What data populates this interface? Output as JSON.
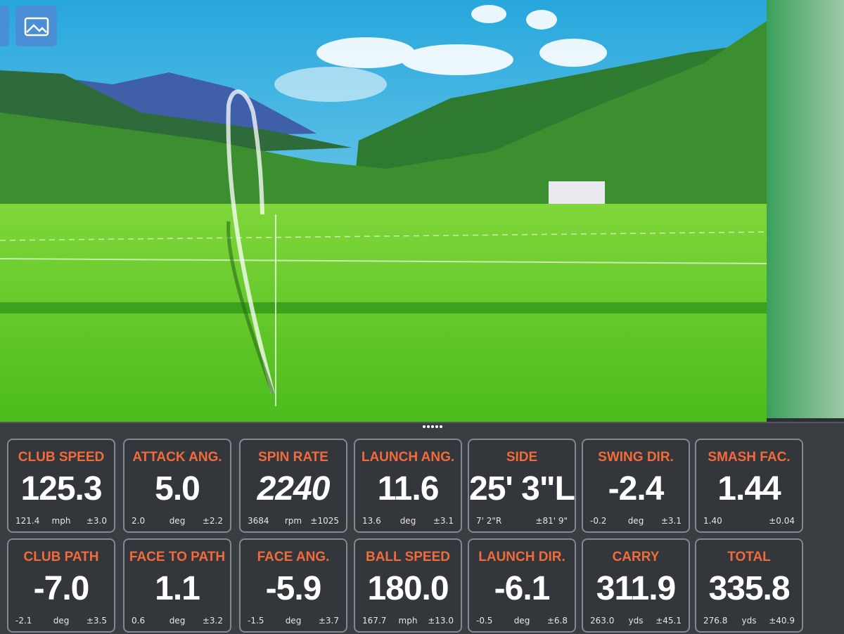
{
  "metrics": [
    {
      "label": "CLUB SPEED",
      "value": "125.3",
      "low": "121.4",
      "unit": "mph",
      "range": "±3.0"
    },
    {
      "label": "ATTACK ANG.",
      "value": "5.0",
      "low": "2.0",
      "unit": "deg",
      "range": "±2.2"
    },
    {
      "label": "SPIN RATE",
      "value": "2240",
      "low": "3684",
      "unit": "rpm",
      "range": "±1025"
    },
    {
      "label": "LAUNCH ANG.",
      "value": "11.6",
      "low": "13.6",
      "unit": "deg",
      "range": "±3.1"
    },
    {
      "label": "SIDE",
      "value": "25' 3\"L",
      "low": "7' 2\"R",
      "range": "±81' 9\""
    },
    {
      "label": "SWING DIR.",
      "value": "-2.4",
      "low": "-0.2",
      "unit": "deg",
      "range": "±3.1"
    },
    {
      "label": "SMASH FAC.",
      "value": "1.44",
      "low": "1.40",
      "range": "±0.04"
    },
    {
      "label": "CLUB PATH",
      "value": "-7.0",
      "low": "-2.1",
      "unit": "deg",
      "range": "±3.5"
    },
    {
      "label": "FACE TO PATH",
      "value": "1.1",
      "low": "0.6",
      "unit": "deg",
      "range": "±3.2"
    },
    {
      "label": "FACE ANG.",
      "value": "-5.9",
      "low": "-1.5",
      "unit": "deg",
      "range": "±3.7"
    },
    {
      "label": "BALL SPEED",
      "value": "180.0",
      "low": "167.7",
      "unit": "mph",
      "range": "±13.0"
    },
    {
      "label": "LAUNCH DIR.",
      "value": "-6.1",
      "low": "-0.5",
      "unit": "deg",
      "range": "±6.8"
    },
    {
      "label": "CARRY",
      "value": "311.9",
      "low": "263.0",
      "unit": "yds",
      "range": "±45.1"
    },
    {
      "label": "TOTAL",
      "value": "335.8",
      "low": "276.8",
      "unit": "yds",
      "range": "±40.9"
    }
  ]
}
